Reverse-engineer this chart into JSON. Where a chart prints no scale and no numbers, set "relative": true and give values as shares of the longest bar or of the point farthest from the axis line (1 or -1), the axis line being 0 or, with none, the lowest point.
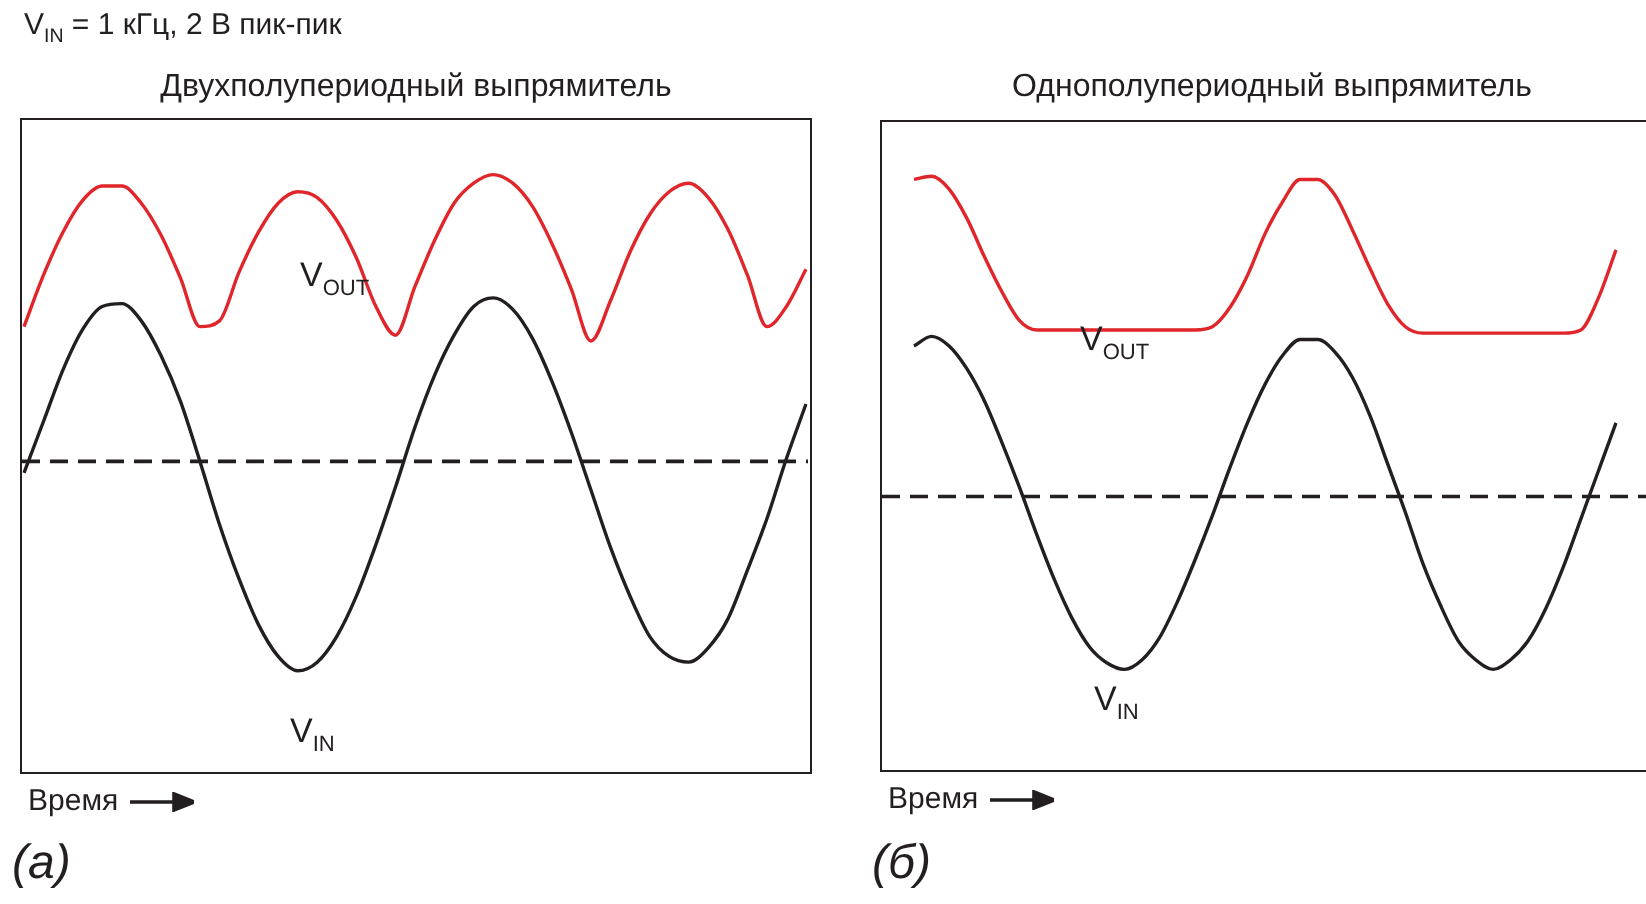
{
  "chart_data": [
    {
      "type": "line",
      "title": "Двухполупериодный выпрямитель",
      "xlabel": "Время",
      "relative": true,
      "categories": [
        null,
        null,
        null,
        null,
        null,
        null,
        null,
        null,
        null,
        null,
        null,
        null,
        null,
        null,
        null,
        null,
        null,
        null,
        null,
        null,
        null,
        null,
        null,
        null,
        null,
        null,
        null,
        null,
        null,
        null,
        null,
        null,
        null,
        null,
        null,
        null,
        null,
        null,
        null,
        null,
        null
      ],
      "series": [
        {
          "name": "V$_{OUT}$",
          "color": "#e0262b",
          "values": [
            0.47,
            0.65,
            0.8,
            0.91,
            0.96,
            0.96,
            0.9,
            0.79,
            0.64,
            0.47,
            0.49,
            0.66,
            0.8,
            0.9,
            0.94,
            0.92,
            0.84,
            0.71,
            0.54,
            0.44,
            0.61,
            0.77,
            0.9,
            0.97,
            1.0,
            0.97,
            0.89,
            0.76,
            0.6,
            0.42,
            0.56,
            0.73,
            0.86,
            0.94,
            0.97,
            0.92,
            0.81,
            0.65,
            0.47,
            0.54,
            0.67
          ]
        },
        {
          "name": "V$_{IN}$",
          "color": "#231f20",
          "values": [
            -0.04,
            0.14,
            0.32,
            0.46,
            0.54,
            0.55,
            0.49,
            0.37,
            0.21,
            0.0,
            -0.22,
            -0.41,
            -0.57,
            -0.68,
            -0.73,
            -0.7,
            -0.61,
            -0.47,
            -0.29,
            -0.09,
            0.12,
            0.3,
            0.44,
            0.54,
            0.57,
            0.53,
            0.43,
            0.28,
            0.1,
            -0.1,
            -0.3,
            -0.47,
            -0.61,
            -0.68,
            -0.7,
            -0.65,
            -0.55,
            -0.38,
            -0.2,
            0.01,
            0.2
          ]
        }
      ],
      "ref_lines": [
        {
          "axis": "y",
          "value": 0,
          "color": "#231f20",
          "line_style": "dashed"
        }
      ],
      "annotations": [
        "V$_{IN}$ = 1 кГц, 2 В пик-пик",
        "(а)"
      ]
    },
    {
      "type": "line",
      "title": "Однополупериодный выпрямитель",
      "xlabel": "Время",
      "relative": true,
      "categories": [
        null,
        null,
        null,
        null,
        null,
        null,
        null,
        null,
        null,
        null,
        null,
        null,
        null,
        null,
        null,
        null,
        null,
        null,
        null,
        null,
        null,
        null,
        null,
        null,
        null,
        null,
        null,
        null,
        null,
        null,
        null,
        null,
        null,
        null,
        null,
        null,
        null,
        null,
        null,
        null,
        null
      ],
      "series": [
        {
          "name": "V$_{OUT}$",
          "color": "#e0262b",
          "values": [
            0.99,
            1.0,
            0.96,
            0.87,
            0.75,
            0.64,
            0.55,
            0.52,
            0.52,
            0.52,
            0.52,
            0.52,
            0.52,
            0.52,
            0.52,
            0.52,
            0.52,
            0.53,
            0.59,
            0.69,
            0.82,
            0.92,
            0.99,
            0.99,
            0.94,
            0.83,
            0.71,
            0.6,
            0.53,
            0.51,
            0.51,
            0.51,
            0.51,
            0.51,
            0.51,
            0.51,
            0.51,
            0.51,
            0.52,
            0.62,
            0.77
          ]
        },
        {
          "name": "V$_{IN}$",
          "color": "#231f20",
          "values": [
            0.47,
            0.5,
            0.47,
            0.4,
            0.3,
            0.17,
            0.03,
            -0.12,
            -0.26,
            -0.38,
            -0.47,
            -0.52,
            -0.54,
            -0.51,
            -0.44,
            -0.33,
            -0.2,
            -0.06,
            0.09,
            0.23,
            0.35,
            0.44,
            0.49,
            0.49,
            0.45,
            0.37,
            0.25,
            0.1,
            -0.05,
            -0.21,
            -0.34,
            -0.45,
            -0.51,
            -0.54,
            -0.51,
            -0.45,
            -0.35,
            -0.22,
            -0.07,
            0.08,
            0.23
          ]
        }
      ],
      "ref_lines": [
        {
          "axis": "y",
          "value": 0,
          "color": "#231f20",
          "line_style": "dashed"
        }
      ],
      "annotations": [
        "(б)"
      ]
    }
  ]
}
